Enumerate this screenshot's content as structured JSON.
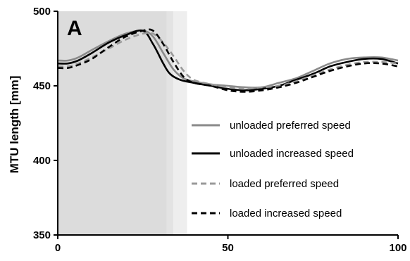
{
  "chart_data": {
    "type": "line",
    "panel_label": "A",
    "ylabel": "MTU length [mm]",
    "xlabel": "",
    "xlim": [
      0,
      100
    ],
    "ylim": [
      350,
      500
    ],
    "x_ticks": [
      0,
      50,
      100
    ],
    "y_ticks": [
      350,
      400,
      450,
      500
    ],
    "grid": false,
    "legend_position": "right",
    "shaded_regions": [
      {
        "x_start": 0,
        "x_end": 32,
        "color": "#dcdcdc"
      },
      {
        "x_start": 32,
        "x_end": 34,
        "color": "#e3e3e3"
      },
      {
        "x_start": 34,
        "x_end": 38,
        "color": "#eeeeee"
      }
    ],
    "series": [
      {
        "name": "unloaded preferred speed",
        "color": "#8a8a8a",
        "dash": "solid",
        "x": [
          0,
          3,
          6,
          10,
          15,
          20,
          25,
          28,
          31,
          34,
          37,
          40,
          45,
          50,
          55,
          60,
          65,
          70,
          75,
          80,
          85,
          90,
          95,
          100
        ],
        "y": [
          467,
          467,
          469,
          474,
          480,
          485,
          487,
          483,
          472,
          461,
          455,
          453,
          451,
          450,
          449,
          449,
          452,
          455,
          460,
          465,
          468,
          469,
          469,
          467
        ]
      },
      {
        "name": "unloaded increased speed",
        "color": "#000000",
        "dash": "solid",
        "x": [
          0,
          3,
          6,
          10,
          15,
          20,
          25,
          28,
          31,
          33,
          36,
          40,
          45,
          50,
          55,
          60,
          65,
          70,
          75,
          80,
          85,
          90,
          95,
          100
        ],
        "y": [
          465,
          465,
          467,
          472,
          479,
          484,
          487,
          478,
          465,
          458,
          454,
          452,
          450,
          448,
          447,
          448,
          450,
          454,
          458,
          463,
          466,
          468,
          468,
          465
        ]
      },
      {
        "name": "loaded preferred speed",
        "color": "#9a9a9a",
        "dash": "dashed",
        "x": [
          0,
          3,
          6,
          10,
          15,
          20,
          25,
          28,
          31,
          34,
          37,
          40,
          45,
          50,
          55,
          60,
          65,
          70,
          75,
          80,
          85,
          90,
          95,
          100
        ],
        "y": [
          463,
          463,
          465,
          469,
          475,
          481,
          485,
          485,
          479,
          470,
          460,
          454,
          451,
          449,
          448,
          449,
          450,
          453,
          457,
          461,
          464,
          466,
          466,
          465
        ]
      },
      {
        "name": "loaded increased speed",
        "color": "#000000",
        "dash": "dashed",
        "x": [
          0,
          3,
          6,
          10,
          15,
          20,
          25,
          28,
          31,
          34,
          37,
          40,
          45,
          50,
          55,
          60,
          65,
          70,
          75,
          80,
          85,
          90,
          95,
          100
        ],
        "y": [
          462,
          462,
          464,
          468,
          476,
          483,
          487,
          487,
          478,
          466,
          456,
          452,
          450,
          447,
          446,
          447,
          449,
          452,
          456,
          460,
          463,
          465,
          465,
          463
        ]
      }
    ]
  }
}
